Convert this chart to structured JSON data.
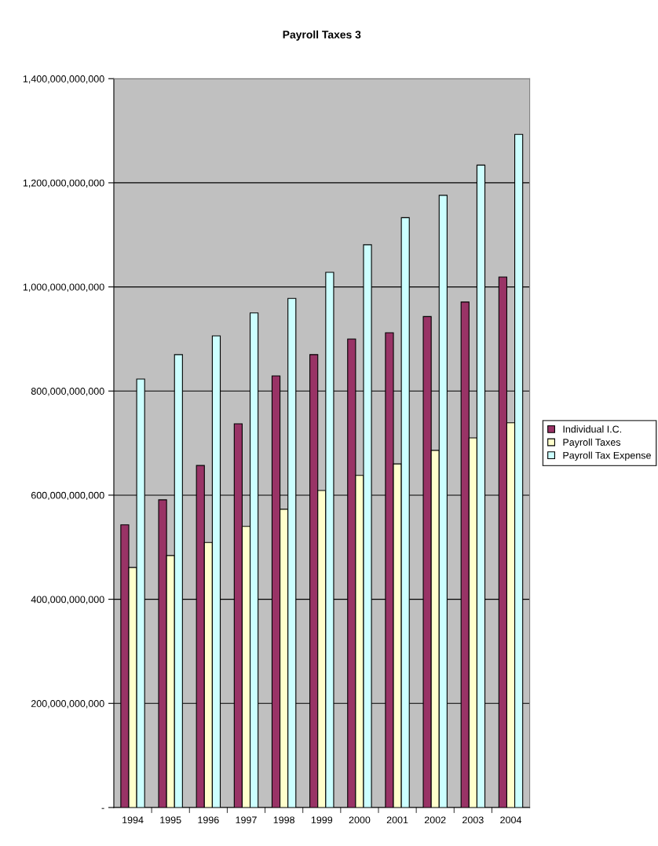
{
  "chart_data": {
    "type": "bar",
    "title": "Payroll Taxes 3",
    "categories": [
      "1994",
      "1995",
      "1996",
      "1997",
      "1998",
      "1999",
      "2000",
      "2001",
      "2002",
      "2003",
      "2004"
    ],
    "series": [
      {
        "name": "Individual I.C.",
        "color": "#993366",
        "values": [
          543000000000,
          591000000000,
          657000000000,
          737000000000,
          829000000000,
          870000000000,
          900000000000,
          912000000000,
          943000000000,
          971000000000,
          1019000000000
        ]
      },
      {
        "name": "Payroll Taxes",
        "color": "#ffffcc",
        "values": [
          461000000000,
          484000000000,
          509000000000,
          540000000000,
          573000000000,
          609000000000,
          638000000000,
          660000000000,
          686000000000,
          710000000000,
          739000000000
        ]
      },
      {
        "name": "Payroll Tax Expense",
        "color": "#ccffff",
        "values": [
          823000000000,
          870000000000,
          906000000000,
          950000000000,
          978000000000,
          1028000000000,
          1081000000000,
          1133000000000,
          1176000000000,
          1234000000000,
          1293000000000
        ]
      }
    ],
    "ylim": [
      0,
      1400000000000
    ],
    "yticks": [
      {
        "value": 0,
        "label": "-"
      },
      {
        "value": 200000000000,
        "label": "200,000,000,000"
      },
      {
        "value": 400000000000,
        "label": "400,000,000,000"
      },
      {
        "value": 600000000000,
        "label": "600,000,000,000"
      },
      {
        "value": 800000000000,
        "label": "800,000,000,000"
      },
      {
        "value": 1000000000000,
        "label": "1,000,000,000,000"
      },
      {
        "value": 1200000000000,
        "label": "1,200,000,000,000"
      },
      {
        "value": 1400000000000,
        "label": "1,400,000,000,000"
      }
    ],
    "grid": "y",
    "legend": "right"
  }
}
